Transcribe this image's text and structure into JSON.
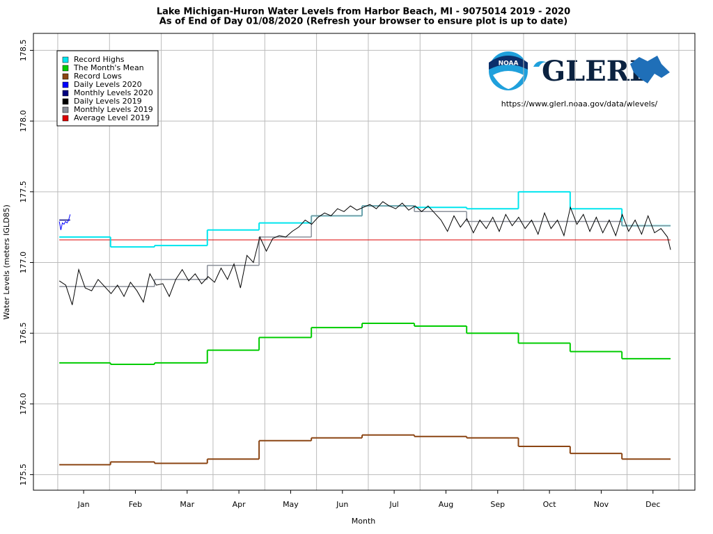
{
  "chart_data": {
    "type": "line",
    "title": "Lake Michigan-Huron Water Levels from Harbor Beach, MI - 9075014 2019 - 2020",
    "subtitle": "As of End of Day 01/08/2020 (Refresh your browser to ensure plot is up to date)",
    "x_label": "Month",
    "y_label": "Water Levels (meters IGLD85)",
    "logo": {
      "badge": "NOAA",
      "name": "GLERL",
      "url": "https://www.glerl.noaa.gov/data/wlevels/"
    },
    "xlim": [
      -0.47,
      12.31
    ],
    "xticks": [
      {
        "value": 0.5,
        "label": "Jan"
      },
      {
        "value": 1.5,
        "label": "Feb"
      },
      {
        "value": 2.5,
        "label": "Mar"
      },
      {
        "value": 3.5,
        "label": "Apr"
      },
      {
        "value": 4.5,
        "label": "May"
      },
      {
        "value": 5.5,
        "label": "Jun"
      },
      {
        "value": 6.5,
        "label": "Jul"
      },
      {
        "value": 7.5,
        "label": "Aug"
      },
      {
        "value": 8.5,
        "label": "Sep"
      },
      {
        "value": 9.5,
        "label": "Oct"
      },
      {
        "value": 10.5,
        "label": "Nov"
      },
      {
        "value": 11.5,
        "label": "Dec"
      }
    ],
    "ylim": [
      175.39,
      178.62
    ],
    "yticks": [
      175.5,
      {
        "value": 176,
        "label": "176.0"
      },
      176.5,
      {
        "value": 177,
        "label": "177.0"
      },
      177.5,
      {
        "value": 178,
        "label": "178.0"
      },
      178.5
    ],
    "grid": true,
    "legend": "upper-left",
    "step_edges": [
      0.03,
      1.02,
      1.87,
      2.89,
      3.89,
      4.9,
      5.88,
      6.89,
      7.9,
      8.9,
      9.9,
      10.9,
      11.84
    ],
    "series": [
      {
        "name": "Record Highs",
        "color": "#00e5ee",
        "style": "step",
        "width": 2,
        "values": [
          177.18,
          177.11,
          177.12,
          177.23,
          177.28,
          177.33,
          177.4,
          177.39,
          177.38,
          177.5,
          177.38,
          177.26
        ]
      },
      {
        "name": "The Month's Mean",
        "color": "#00cc00",
        "style": "step",
        "width": 2,
        "values": [
          176.29,
          176.28,
          176.29,
          176.38,
          176.47,
          176.54,
          176.57,
          176.55,
          176.5,
          176.43,
          176.37,
          176.32
        ]
      },
      {
        "name": "Record Lows",
        "color": "#8b4513",
        "style": "step",
        "width": 2,
        "values": [
          175.57,
          175.59,
          175.58,
          175.61,
          175.74,
          175.76,
          175.78,
          175.77,
          175.76,
          175.7,
          175.65,
          175.61
        ]
      },
      {
        "name": "Daily Levels 2020",
        "color": "#0000ff",
        "style": "line",
        "width": 1,
        "x": [
          0.03,
          0.06,
          0.09,
          0.12,
          0.15,
          0.18,
          0.21,
          0.24
        ],
        "values": [
          177.29,
          177.23,
          177.28,
          177.27,
          177.29,
          177.28,
          177.3,
          177.34
        ]
      },
      {
        "name": "Monthly Levels 2020",
        "color": "#000080",
        "style": "step",
        "width": 1.5,
        "edges": [
          0.03,
          0.24
        ],
        "values": [
          177.3
        ]
      },
      {
        "name": "Daily Levels 2019",
        "color": "#000000",
        "style": "line",
        "width": 1,
        "x": [
          0.03,
          0.155,
          0.28,
          0.405,
          0.53,
          0.655,
          0.78,
          0.905,
          1.03,
          1.155,
          1.28,
          1.405,
          1.53,
          1.655,
          1.78,
          1.905,
          2.03,
          2.155,
          2.28,
          2.405,
          2.53,
          2.655,
          2.78,
          2.905,
          3.03,
          3.155,
          3.28,
          3.405,
          3.53,
          3.655,
          3.78,
          3.905,
          4.03,
          4.155,
          4.28,
          4.405,
          4.53,
          4.655,
          4.78,
          4.905,
          5.03,
          5.155,
          5.28,
          5.405,
          5.53,
          5.655,
          5.78,
          5.905,
          6.03,
          6.155,
          6.28,
          6.405,
          6.53,
          6.655,
          6.78,
          6.905,
          7.03,
          7.155,
          7.28,
          7.405,
          7.53,
          7.655,
          7.78,
          7.905,
          8.03,
          8.155,
          8.28,
          8.405,
          8.53,
          8.655,
          8.78,
          8.905,
          9.03,
          9.155,
          9.28,
          9.405,
          9.53,
          9.655,
          9.78,
          9.905,
          10.03,
          10.155,
          10.28,
          10.405,
          10.53,
          10.655,
          10.78,
          10.905,
          11.03,
          11.155,
          11.28,
          11.405,
          11.53,
          11.655,
          11.78,
          11.84
        ],
        "values": [
          176.87,
          176.84,
          176.7,
          176.95,
          176.82,
          176.8,
          176.88,
          176.83,
          176.78,
          176.84,
          176.76,
          176.86,
          176.8,
          176.72,
          176.92,
          176.84,
          176.85,
          176.76,
          176.88,
          176.95,
          176.87,
          176.92,
          176.85,
          176.9,
          176.86,
          176.96,
          176.88,
          176.99,
          176.82,
          177.05,
          177.0,
          177.18,
          177.08,
          177.17,
          177.19,
          177.18,
          177.22,
          177.25,
          177.3,
          177.27,
          177.32,
          177.35,
          177.33,
          177.38,
          177.36,
          177.4,
          177.37,
          177.39,
          177.41,
          177.38,
          177.43,
          177.4,
          177.38,
          177.42,
          177.37,
          177.4,
          177.36,
          177.4,
          177.35,
          177.3,
          177.22,
          177.33,
          177.25,
          177.31,
          177.21,
          177.3,
          177.24,
          177.32,
          177.22,
          177.34,
          177.26,
          177.32,
          177.24,
          177.3,
          177.2,
          177.35,
          177.24,
          177.3,
          177.19,
          177.39,
          177.27,
          177.34,
          177.22,
          177.32,
          177.21,
          177.3,
          177.19,
          177.34,
          177.22,
          177.3,
          177.2,
          177.33,
          177.21,
          177.24,
          177.18,
          177.09
        ]
      },
      {
        "name": "Monthly Levels 2019",
        "color": "#8a8f99",
        "style": "step",
        "width": 1.5,
        "values": [
          176.83,
          176.83,
          176.88,
          176.98,
          177.18,
          177.33,
          177.4,
          177.36,
          177.29,
          177.29,
          177.29,
          177.26
        ]
      },
      {
        "name": "Average Level 2019",
        "color": "#dd0000",
        "style": "step",
        "width": 1,
        "edges": [
          0.03,
          11.84
        ],
        "values": [
          177.16
        ]
      }
    ]
  }
}
